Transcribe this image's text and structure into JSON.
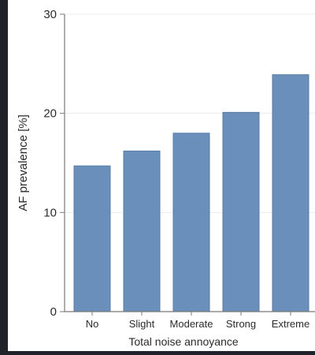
{
  "chart_data": {
    "type": "bar",
    "title": "",
    "xlabel": "Total noise annoyance",
    "ylabel": "AF prevalence [%]",
    "categories": [
      "No",
      "Slight",
      "Moderate",
      "Strong",
      "Extreme"
    ],
    "values": [
      14.7,
      16.2,
      18.0,
      20.1,
      23.9
    ],
    "ylim": [
      0,
      30
    ],
    "yticks": [
      "0",
      "10",
      "20",
      "30"
    ],
    "grid": true,
    "legend": "none",
    "colors": {
      "bar": "#6a8fba",
      "bar_edge": "#5a7ea8",
      "plot_bg": "#ffffff",
      "page_bg": "#1f2228",
      "text": "#2b2b2b",
      "grid": "#ececec",
      "axis": "#7a7a7a"
    }
  }
}
